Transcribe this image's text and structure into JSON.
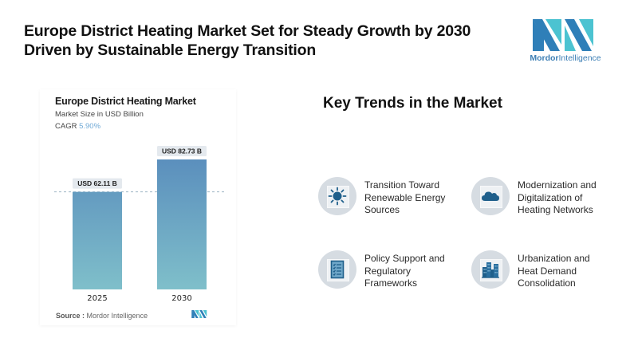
{
  "header": {
    "title_lines": [
      "Europe District Heating Market Set for Steady Growth by 2030",
      "Driven by Sustainable Energy Transition"
    ]
  },
  "logo": {
    "name_bold": "Mordor",
    "name_rest": "Intelligence",
    "colors": {
      "dark": "#2f7fb8",
      "light": "#4cc3d1"
    }
  },
  "chart_card": {
    "title": "Europe District Heating Market",
    "subtitle": "Market Size in USD Billion",
    "cagr_label": "CAGR",
    "cagr_value": "5.90%",
    "source_label": "Source :",
    "source_value": "Mordor Intelligence"
  },
  "chart_data": {
    "type": "bar",
    "title": "Europe District Heating Market",
    "subtitle": "Market Size in USD Billion",
    "categories": [
      "2025",
      "2030"
    ],
    "values": [
      62.11,
      82.73
    ],
    "data_labels": [
      "USD 62.11 B",
      "USD 82.73 B"
    ],
    "unit": "USD Billion",
    "cagr": "5.90%",
    "xlabel": "",
    "ylabel": "",
    "ylim": [
      0,
      82.73
    ],
    "grid": false,
    "reference_line": {
      "value": 62.11,
      "style": "dashed"
    },
    "colors": {
      "bar_top": "#5b8fbd",
      "bar_bottom": "#7fbfca",
      "label_bg": "#e4e9ee"
    }
  },
  "trends": {
    "title": "Key Trends in the Market",
    "items": [
      {
        "icon": "sun-icon",
        "lines": [
          "Transition Toward",
          "Renewable Energy",
          "Sources"
        ]
      },
      {
        "icon": "cloud-icon",
        "lines": [
          "Modernization and",
          "Digitalization of",
          "Heating Networks"
        ]
      },
      {
        "icon": "checklist-icon",
        "lines": [
          "Policy Support and",
          "Regulatory",
          "Frameworks"
        ]
      },
      {
        "icon": "buildings-icon",
        "lines": [
          "Urbanization and",
          "Heat Demand",
          "Consolidation"
        ]
      }
    ],
    "icon_color": "#1f5f8b"
  }
}
